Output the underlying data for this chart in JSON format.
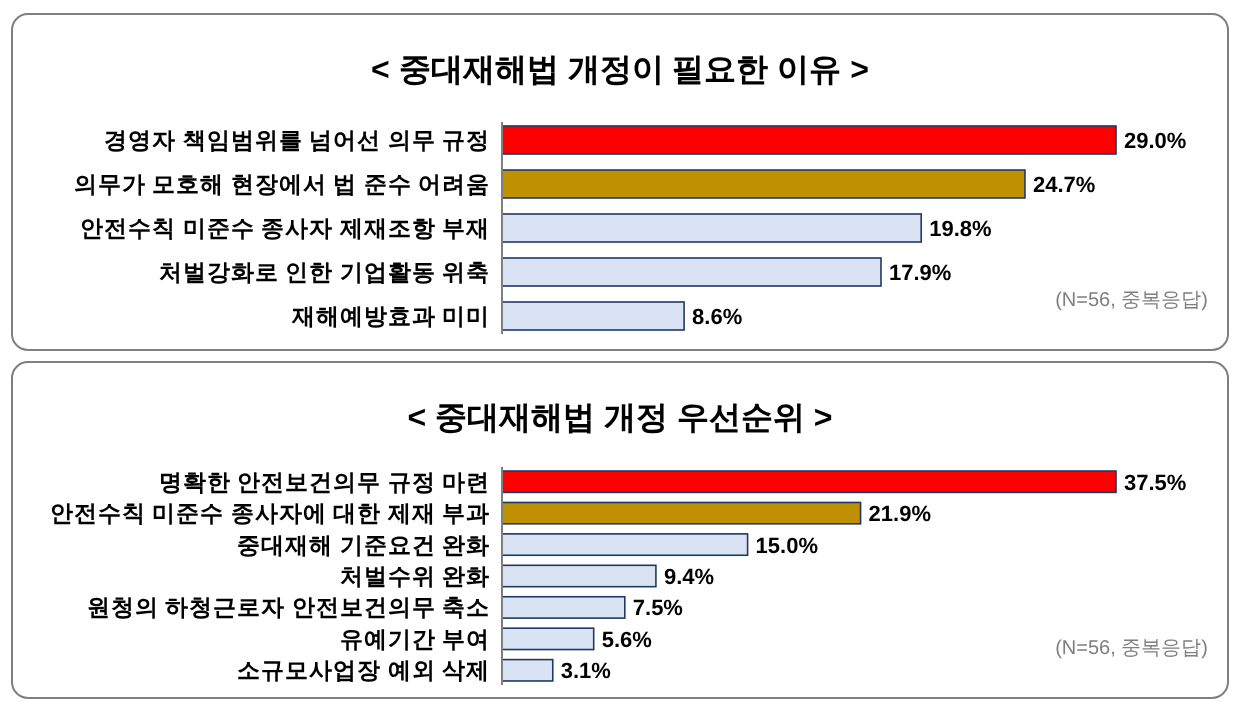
{
  "chart_data": [
    {
      "type": "bar",
      "orientation": "horizontal",
      "title": "< 중대재해법 개정이 필요한 이유 >",
      "categories": [
        "경영자 책임범위를 넘어선 의무 규정",
        "의무가 모호해 현장에서 법 준수 어려움",
        "안전수칙 미준수 종사자 제재조항 부재",
        "처벌강화로 인한 기업활동 위축",
        "재해예방효과 미미"
      ],
      "values": [
        29.0,
        24.7,
        19.8,
        17.9,
        8.6
      ],
      "value_labels": [
        "29.0%",
        "24.7%",
        "19.8%",
        "17.9%",
        "8.6%"
      ],
      "colors": [
        "#ff0000",
        "#bf9000",
        "#dae3f3",
        "#dae3f3",
        "#dae3f3"
      ],
      "annotations": [
        "(N=56, 중복응답)"
      ]
    },
    {
      "type": "bar",
      "orientation": "horizontal",
      "title": "< 중대재해법 개정 우선순위 >",
      "categories": [
        "명확한 안전보건의무 규정 마련",
        "안전수칙 미준수 종사자에 대한 제재 부과",
        "중대재해 기준요건 완화",
        "처벌수위 완화",
        "원청의 하청근로자 안전보건의무 축소",
        "유예기간 부여",
        "소규모사업장 예외 삭제"
      ],
      "values": [
        37.5,
        21.9,
        15.0,
        9.4,
        7.5,
        5.6,
        3.1
      ],
      "value_labels": [
        "37.5%",
        "21.9%",
        "15.0%",
        "9.4%",
        "7.5%",
        "5.6%",
        "3.1%"
      ],
      "colors": [
        "#ff0000",
        "#bf9000",
        "#dae3f3",
        "#dae3f3",
        "#dae3f3",
        "#dae3f3",
        "#dae3f3"
      ],
      "annotations": [
        "(N=56, 중복응답)"
      ]
    }
  ]
}
